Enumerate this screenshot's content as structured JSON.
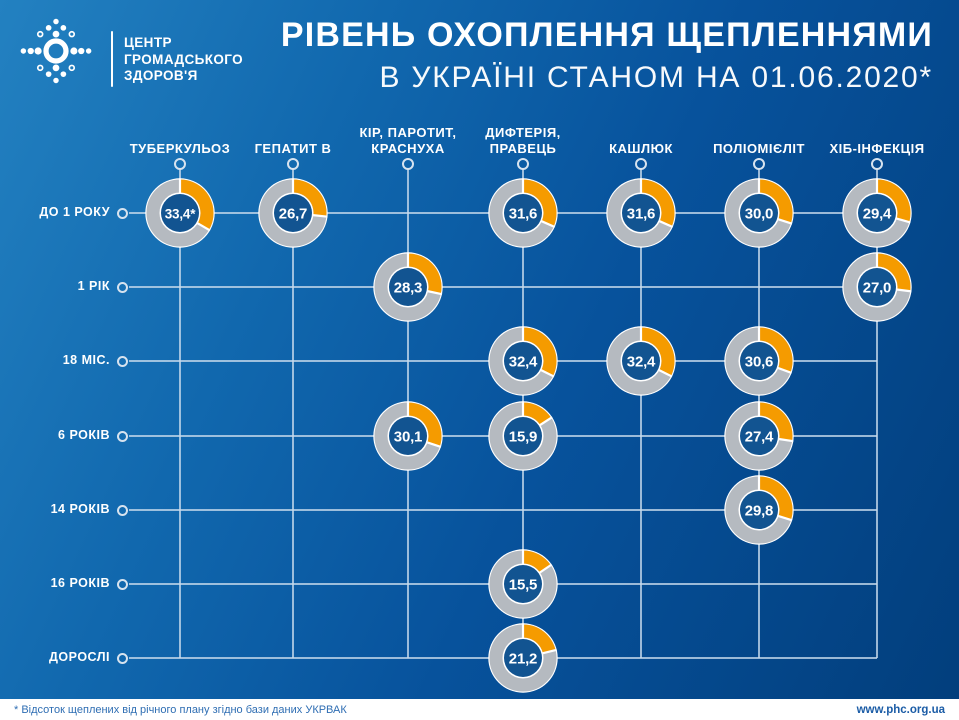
{
  "header": {
    "logo": {
      "lines": [
        "ЦЕНТР",
        "ГРОМАДСЬКОГО",
        "ЗДОРОВ'Я"
      ]
    },
    "title_line1": "РІВЕНЬ ОХОПЛЕННЯ ЩЕПЛЕННЯМИ",
    "title_line2": "В УКРАЇНІ СТАНОМ НА 01.06.2020*"
  },
  "chart_data": {
    "type": "donut-matrix",
    "title": "РІВЕНЬ ОХОПЛЕННЯ ЩЕПЛЕННЯМИ В УКРАЇНІ СТАНОМ НА 01.06.2020*",
    "unit": "percent of annual plan",
    "value_range": [
      0,
      100
    ],
    "arc_start": "top",
    "arc_direction": "clockwise",
    "columns": [
      {
        "label": "ТУБЕРКУЛЬОЗ",
        "lines": [
          "ТУБЕРКУЛЬОЗ"
        ]
      },
      {
        "label": "ГЕПАТИТ В",
        "lines": [
          "ГЕПАТИТ В"
        ]
      },
      {
        "label": "КІР, ПАРОТИТ, КРАСНУХА",
        "lines": [
          "КІР, ПАРОТИТ,",
          "КРАСНУХА"
        ]
      },
      {
        "label": "ДИФТЕРІЯ, ПРАВЕЦЬ",
        "lines": [
          "ДИФТЕРІЯ,",
          "ПРАВЕЦЬ"
        ]
      },
      {
        "label": "КАШЛЮК",
        "lines": [
          "КАШЛЮК"
        ]
      },
      {
        "label": "ПОЛІОМІЄЛІТ",
        "lines": [
          "ПОЛІОМІЄЛІТ"
        ]
      },
      {
        "label": "ХІБ-ІНФЕКЦІЯ",
        "lines": [
          "ХІБ-ІНФЕКЦІЯ"
        ]
      }
    ],
    "rows": [
      "ДО 1 РОКУ",
      "1 РІК",
      "18 МІС.",
      "6 РОКІВ",
      "14 РОКІВ",
      "16 РОКІВ",
      "ДОРОСЛІ"
    ],
    "cells": [
      {
        "row": 0,
        "col": 0,
        "label": "33,4*",
        "value": 33.4
      },
      {
        "row": 0,
        "col": 1,
        "label": "26,7",
        "value": 26.7
      },
      {
        "row": 0,
        "col": 3,
        "label": "31,6",
        "value": 31.6
      },
      {
        "row": 0,
        "col": 4,
        "label": "31,6",
        "value": 31.6
      },
      {
        "row": 0,
        "col": 5,
        "label": "30,0",
        "value": 30.0
      },
      {
        "row": 0,
        "col": 6,
        "label": "29,4",
        "value": 29.4
      },
      {
        "row": 1,
        "col": 2,
        "label": "28,3",
        "value": 28.3
      },
      {
        "row": 1,
        "col": 6,
        "label": "27,0",
        "value": 27.0
      },
      {
        "row": 2,
        "col": 3,
        "label": "32,4",
        "value": 32.4
      },
      {
        "row": 2,
        "col": 4,
        "label": "32,4",
        "value": 32.4
      },
      {
        "row": 2,
        "col": 5,
        "label": "30,6",
        "value": 30.6
      },
      {
        "row": 3,
        "col": 2,
        "label": "30,1",
        "value": 30.1
      },
      {
        "row": 3,
        "col": 3,
        "label": "15,9",
        "value": 15.9
      },
      {
        "row": 3,
        "col": 5,
        "label": "27,4",
        "value": 27.4
      },
      {
        "row": 4,
        "col": 5,
        "label": "29,8",
        "value": 29.8
      },
      {
        "row": 5,
        "col": 3,
        "label": "15,5",
        "value": 15.5
      },
      {
        "row": 6,
        "col": 3,
        "label": "21,2",
        "value": 21.2
      }
    ]
  },
  "footer": {
    "note": "* Відсоток щеплених від річного плану згідно бази даних УКРВАК",
    "website": "www.phc.org.ua"
  },
  "colors": {
    "background_top": "#2381C1",
    "background_bottom": "#023E7C",
    "accent_orange": "#F59B00",
    "ring_gray": "#B5BAC0",
    "donut_center": "#125491",
    "grid_line": "#C7DAEC",
    "footer_note_text": "#2F6EB3",
    "footer_link_text": "#1B5CA6"
  }
}
